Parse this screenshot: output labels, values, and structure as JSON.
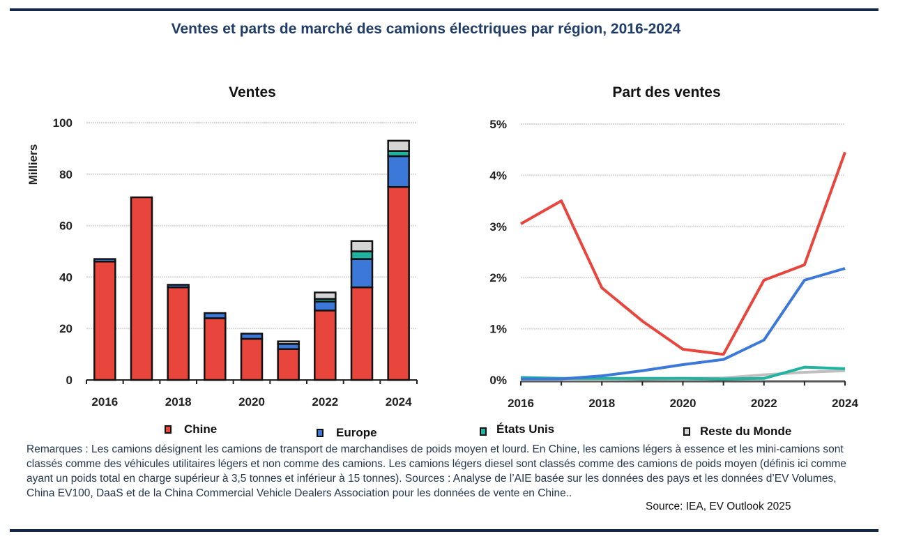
{
  "title": "Ventes et parts de marché des camions électriques par région, 2016-2024",
  "legend": [
    {
      "name": "Chine",
      "color": "#e8453c"
    },
    {
      "name": "Europe",
      "color": "#3b78d8"
    },
    {
      "name": "États Unis",
      "color": "#1fb3a0"
    },
    {
      "name": "Reste du Monde",
      "color": "#d4d4d4"
    }
  ],
  "notes": "Remarques : Les camions désignent les camions de transport de marchandises de poids moyen et lourd. En Chine, les camions légers à essence et les mini-camions sont classés comme des véhicules utilitaires légers et non comme des camions. Les camions légers diesel sont classés comme des camions de poids moyen (définis ici comme ayant un poids total en charge supérieur à 3,5 tonnes et inférieur à 15 tonnes). Sources : Analyse de l’AIE basée sur les données des pays et les données d’EV Volumes, China EV100, DaaS et de la China Commercial Vehicle Dealers Association pour les données de vente en Chine..",
  "source": "Source: IEA, EV Outlook 2025",
  "chart_data": [
    {
      "type": "bar",
      "stacked": true,
      "title": "Ventes",
      "xlabel": "",
      "ylabel": "Milliers",
      "ylim": [
        0,
        100
      ],
      "yticks": [
        "0",
        "20",
        "40",
        "60",
        "80",
        "100"
      ],
      "categories": [
        "2016",
        "2017",
        "2018",
        "2019",
        "2020",
        "2021",
        "2022",
        "2023",
        "2024"
      ],
      "xtick_labels": [
        "2016",
        "",
        "2018",
        "",
        "2020",
        "",
        "2022",
        "",
        "2024"
      ],
      "grid": true,
      "series": [
        {
          "name": "Chine",
          "values": [
            46,
            71,
            36,
            24,
            16,
            12,
            27,
            36,
            75
          ]
        },
        {
          "name": "Europe",
          "values": [
            1,
            0,
            1,
            2,
            2,
            2,
            3.5,
            11,
            12
          ]
        },
        {
          "name": "États Unis",
          "values": [
            0,
            0,
            0,
            0,
            0,
            0,
            1,
            3,
            2
          ]
        },
        {
          "name": "Reste du Monde",
          "values": [
            0,
            0,
            0,
            0,
            0,
            1,
            2.5,
            4,
            4
          ]
        }
      ]
    },
    {
      "type": "line",
      "title": "Part des ventes",
      "xlabel": "",
      "ylabel": "",
      "ylim": [
        0,
        5
      ],
      "yticks": [
        "0%",
        "1%",
        "2%",
        "3%",
        "4%",
        "5%"
      ],
      "x": [
        "2016",
        "2017",
        "2018",
        "2019",
        "2020",
        "2021",
        "2022",
        "2023",
        "2024"
      ],
      "xtick_labels": [
        "2016",
        "",
        "2018",
        "",
        "2020",
        "",
        "2022",
        "",
        "2024"
      ],
      "grid": true,
      "series": [
        {
          "name": "Chine",
          "values": [
            3.05,
            3.5,
            1.8,
            1.15,
            0.6,
            0.5,
            1.95,
            2.25,
            4.45
          ]
        },
        {
          "name": "Europe",
          "values": [
            0.02,
            0.02,
            0.08,
            0.18,
            0.3,
            0.4,
            0.78,
            1.95,
            2.18
          ]
        },
        {
          "name": "États Unis",
          "values": [
            0.05,
            0.03,
            0.03,
            0.03,
            0.03,
            0.02,
            0.03,
            0.25,
            0.22
          ]
        },
        {
          "name": "Reste du Monde",
          "values": [
            0.01,
            0.01,
            0.01,
            0.02,
            0.03,
            0.04,
            0.1,
            0.15,
            0.18
          ]
        }
      ]
    }
  ]
}
